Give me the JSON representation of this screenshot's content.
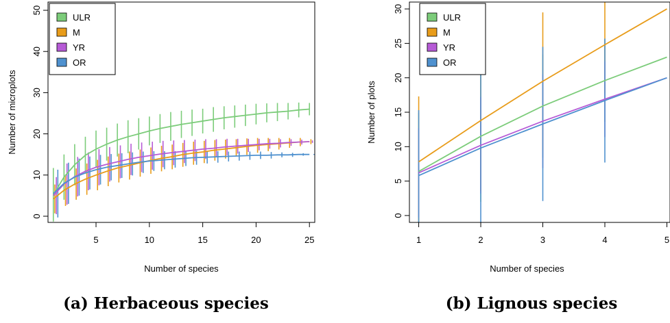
{
  "chart_data": [
    {
      "type": "line",
      "caption": "(a) Herbaceous species",
      "xlabel": "Number of species",
      "ylabel": "Number of microplots",
      "xlim": [
        0.5,
        25.5
      ],
      "ylim": [
        -1.5,
        52
      ],
      "xticks": [
        5,
        10,
        15,
        20,
        25
      ],
      "yticks": [
        0,
        10,
        20,
        30,
        40,
        50
      ],
      "legend": {
        "position": "top-left",
        "entries": [
          "ULR",
          "M",
          "YR",
          "OR"
        ]
      },
      "grid": false,
      "x": [
        1,
        2,
        3,
        4,
        5,
        6,
        7,
        8,
        9,
        10,
        11,
        12,
        13,
        14,
        15,
        16,
        17,
        18,
        19,
        20,
        21,
        22,
        23,
        24,
        25
      ],
      "series": [
        {
          "name": "ULR",
          "color": "#7ccc7a",
          "values": [
            5.2,
            9.5,
            12.5,
            14.8,
            16.3,
            17.5,
            18.5,
            19.3,
            20.0,
            20.7,
            21.3,
            21.8,
            22.3,
            22.7,
            23.1,
            23.5,
            23.9,
            24.2,
            24.5,
            24.8,
            25.1,
            25.3,
            25.5,
            25.8,
            26.0
          ],
          "error": [
            6.5,
            5.5,
            5.0,
            4.5,
            4.5,
            4.0,
            4.0,
            4.0,
            3.8,
            3.5,
            3.5,
            3.5,
            3.3,
            3.2,
            3.0,
            3.0,
            2.8,
            2.7,
            2.6,
            2.5,
            2.3,
            2.2,
            2.0,
            1.8,
            1.5
          ]
        },
        {
          "name": "M",
          "color": "#e89c1a",
          "values": [
            4.2,
            6.3,
            7.8,
            9.0,
            10.0,
            10.9,
            11.7,
            12.3,
            12.9,
            13.5,
            14.0,
            14.4,
            14.9,
            15.3,
            15.6,
            16.0,
            16.3,
            16.6,
            16.9,
            17.2,
            17.4,
            17.6,
            17.8,
            18.0,
            18.1
          ],
          "error": [
            3.5,
            3.8,
            3.8,
            3.8,
            3.7,
            3.6,
            3.5,
            3.4,
            3.3,
            3.2,
            3.1,
            3.0,
            2.9,
            2.8,
            2.7,
            2.5,
            2.3,
            2.1,
            2.0,
            1.8,
            1.6,
            1.4,
            1.2,
            1.0,
            0.6
          ]
        },
        {
          "name": "YR",
          "color": "#b65bd6",
          "values": [
            5.0,
            7.8,
            9.6,
            10.9,
            11.9,
            12.6,
            13.2,
            13.8,
            14.3,
            14.7,
            15.1,
            15.4,
            15.7,
            16.0,
            16.3,
            16.5,
            16.8,
            17.0,
            17.2,
            17.4,
            17.6,
            17.7,
            17.9,
            18.0,
            18.1
          ],
          "error": [
            4.5,
            5.0,
            4.8,
            4.6,
            4.4,
            4.2,
            4.0,
            3.8,
            3.6,
            3.4,
            3.2,
            3.0,
            2.8,
            2.6,
            2.4,
            2.2,
            2.0,
            1.8,
            1.6,
            1.4,
            1.2,
            1.0,
            0.8,
            0.6,
            0.3
          ]
        },
        {
          "name": "OR",
          "color": "#4f91cf",
          "values": [
            5.5,
            8.0,
            9.5,
            10.5,
            11.3,
            11.9,
            12.3,
            12.7,
            13.1,
            13.4,
            13.6,
            13.8,
            14.0,
            14.2,
            14.3,
            14.4,
            14.5,
            14.6,
            14.7,
            14.8,
            14.8,
            14.9,
            14.9,
            15.0,
            15.0
          ],
          "error": [
            5.8,
            5.0,
            4.5,
            4.0,
            3.6,
            3.2,
            3.0,
            2.8,
            2.6,
            2.4,
            2.2,
            2.0,
            1.8,
            1.7,
            1.5,
            1.4,
            1.2,
            1.1,
            1.0,
            0.9,
            0.8,
            0.6,
            0.5,
            0.3,
            0.1
          ]
        }
      ]
    },
    {
      "type": "line",
      "caption": "(b) Lignous species",
      "xlabel": "Number of species",
      "ylabel": "Number of plots",
      "xlim": [
        0.85,
        5.05
      ],
      "ylim": [
        -1,
        31
      ],
      "xticks": [
        1,
        2,
        3,
        4,
        5
      ],
      "yticks": [
        0,
        5,
        10,
        15,
        20,
        25,
        30
      ],
      "legend": {
        "position": "top-left",
        "entries": [
          "ULR",
          "M",
          "YR",
          "OR"
        ]
      },
      "grid": false,
      "x": [
        1,
        2,
        3,
        4,
        5
      ],
      "series": [
        {
          "name": "ULR",
          "color": "#7ccc7a",
          "values": [
            6.4,
            11.5,
            15.9,
            19.6,
            23.0
          ],
          "error": [
            8.5,
            9.5,
            7.5,
            6.0,
            0
          ]
        },
        {
          "name": "M",
          "color": "#e89c1a",
          "values": [
            7.8,
            13.8,
            19.5,
            24.8,
            30.0
          ],
          "error": [
            9.5,
            10.2,
            10.0,
            7.0,
            0
          ]
        },
        {
          "name": "YR",
          "color": "#b65bd6",
          "values": [
            6.2,
            10.2,
            13.7,
            16.9,
            20.0
          ],
          "error": [
            6.5,
            7.0,
            6.8,
            5.5,
            0
          ]
        },
        {
          "name": "OR",
          "color": "#4f91cf",
          "values": [
            5.8,
            9.8,
            13.3,
            16.7,
            20.0
          ],
          "error": [
            9.5,
            11.5,
            11.2,
            9.0,
            0
          ]
        }
      ]
    }
  ]
}
